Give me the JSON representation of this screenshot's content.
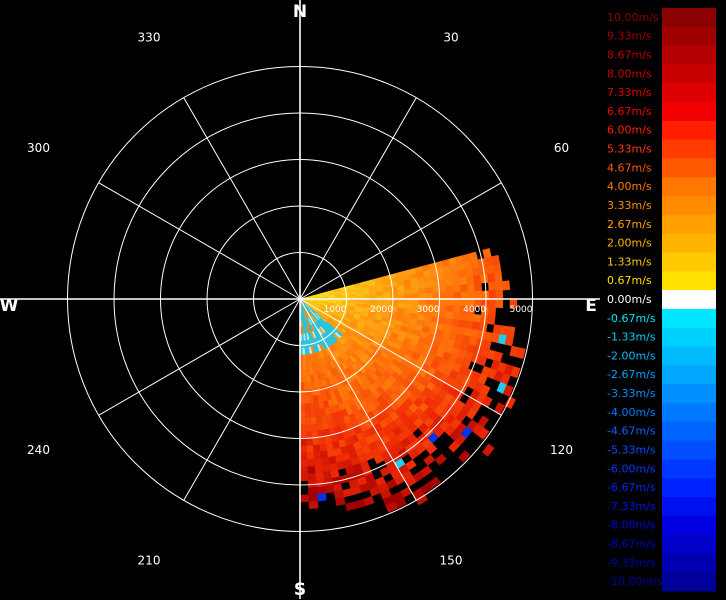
{
  "chart_data": {
    "type": "polar-heatmap",
    "variable_unit": "m/s",
    "cardinal_labels": {
      "north": "N",
      "east": "E",
      "south": "S",
      "west": "W"
    },
    "bearing_labels": [
      "30",
      "60",
      "120",
      "150",
      "210",
      "240",
      "300",
      "330"
    ],
    "bearing_angles": [
      30,
      60,
      120,
      150,
      210,
      240,
      300,
      330
    ],
    "range_rings": [
      1000,
      2000,
      3000,
      4000,
      5000
    ],
    "range_labels": [
      "1000",
      "2000",
      "3000",
      "4000",
      "5000"
    ],
    "radial_spokes_deg": [
      0,
      30,
      60,
      90,
      120,
      150,
      180,
      210,
      240,
      270,
      300,
      330
    ],
    "coverage_sector_deg": [
      75,
      180
    ],
    "legend": {
      "entries": [
        {
          "label": "10.00m/s",
          "color": "#8b0000"
        },
        {
          "label": "9.33m/s",
          "color": "#a00000"
        },
        {
          "label": "8.67m/s",
          "color": "#b40000"
        },
        {
          "label": "8.00m/s",
          "color": "#c80000"
        },
        {
          "label": "7.33m/s",
          "color": "#dc0000"
        },
        {
          "label": "6.67m/s",
          "color": "#f00000"
        },
        {
          "label": "6.00m/s",
          "color": "#ff1e00"
        },
        {
          "label": "5.33m/s",
          "color": "#ff3c00"
        },
        {
          "label": "4.67m/s",
          "color": "#ff5a00"
        },
        {
          "label": "4.00m/s",
          "color": "#ff7800"
        },
        {
          "label": "3.33m/s",
          "color": "#ff8c00"
        },
        {
          "label": "2.67m/s",
          "color": "#ffa000"
        },
        {
          "label": "2.00m/s",
          "color": "#ffb400"
        },
        {
          "label": "1.33m/s",
          "color": "#ffc800"
        },
        {
          "label": "0.67m/s",
          "color": "#ffe000"
        },
        {
          "label": "0.00m/s",
          "color": "#ffffff"
        },
        {
          "label": "-0.67m/s",
          "color": "#00e8ff"
        },
        {
          "label": "-1.33m/s",
          "color": "#00d2ff"
        },
        {
          "label": "-2.00m/s",
          "color": "#00bcff"
        },
        {
          "label": "-2.67m/s",
          "color": "#00a6ff"
        },
        {
          "label": "-3.33m/s",
          "color": "#0090ff"
        },
        {
          "label": "-4.00m/s",
          "color": "#007aff"
        },
        {
          "label": "-4.67m/s",
          "color": "#0064ff"
        },
        {
          "label": "-5.33m/s",
          "color": "#004eff"
        },
        {
          "label": "-6.00m/s",
          "color": "#0038ff"
        },
        {
          "label": "-6.67m/s",
          "color": "#0022ff"
        },
        {
          "label": "-7.33m/s",
          "color": "#0010f0"
        },
        {
          "label": "-8.00m/s",
          "color": "#0000e0"
        },
        {
          "label": "-8.67m/s",
          "color": "#0000c8"
        },
        {
          "label": "-9.33m/s",
          "color": "#0000b0"
        },
        {
          "label": "-10.00m/s",
          "color": "#000098"
        }
      ]
    }
  }
}
